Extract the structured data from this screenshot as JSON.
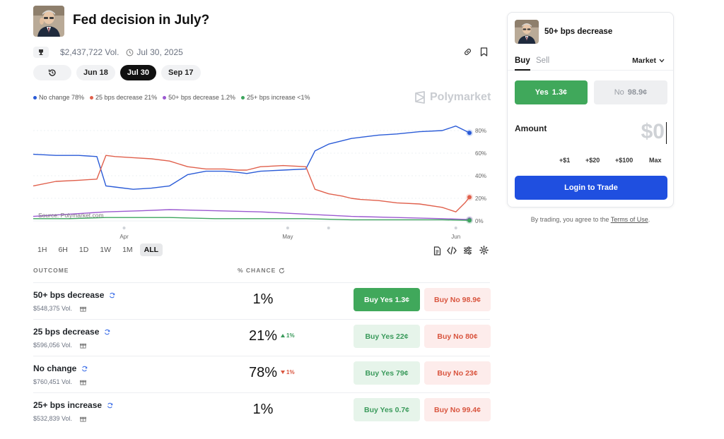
{
  "market": {
    "title": "Fed decision in July?",
    "volume": "$2,437,722 Vol.",
    "end_date": "Jul 30, 2025"
  },
  "date_tabs": [
    {
      "label": "Jun 18",
      "active": false
    },
    {
      "label": "Jul 30",
      "active": true
    },
    {
      "label": "Sep 17",
      "active": false
    }
  ],
  "legend": [
    {
      "label": "No change 78%",
      "color": "#2a5bd7"
    },
    {
      "label": "25 bps decrease 21%",
      "color": "#e0604c"
    },
    {
      "label": "50+ bps decrease 1.2%",
      "color": "#9b59d0"
    },
    {
      "label": "25+ bps increase <1%",
      "color": "#3da55d"
    }
  ],
  "brand": "Polymarket",
  "chart_data": {
    "type": "line",
    "x_ticks": [
      "Apr",
      "May",
      "Jun"
    ],
    "y_ticks": [
      "0%",
      "20%",
      "40%",
      "60%",
      "80%"
    ],
    "ylim": [
      0,
      100
    ],
    "watermark": "Source: Polymarket.com",
    "series": [
      {
        "name": "No change",
        "color": "#2a5bd7",
        "x": [
          0,
          5,
          10,
          14,
          16,
          18,
          22,
          26,
          30,
          34,
          38,
          42,
          45,
          47,
          50,
          55,
          60,
          62,
          65,
          68,
          70,
          72,
          76,
          80,
          85,
          90,
          93,
          95,
          96
        ],
        "y": [
          59,
          58,
          58,
          57,
          31,
          30,
          28,
          29,
          31,
          41,
          44,
          44,
          43,
          42,
          44,
          45,
          46,
          62,
          68,
          71,
          73,
          74,
          76,
          77,
          79,
          80,
          84,
          80,
          78
        ]
      },
      {
        "name": "25 bps decrease",
        "color": "#e0604c",
        "x": [
          0,
          5,
          10,
          14,
          16,
          18,
          22,
          26,
          30,
          34,
          38,
          42,
          45,
          47,
          50,
          55,
          60,
          62,
          65,
          68,
          70,
          72,
          76,
          80,
          85,
          90,
          93,
          95,
          96
        ],
        "y": [
          31,
          35,
          36,
          37,
          58,
          57,
          56,
          55,
          53,
          48,
          46,
          46,
          45,
          45,
          48,
          49,
          48,
          28,
          24,
          22,
          20,
          19,
          18,
          16,
          15,
          12,
          8,
          16,
          21
        ]
      },
      {
        "name": "50+ bps decrease",
        "color": "#9b59d0",
        "x": [
          0,
          8,
          16,
          24,
          30,
          40,
          50,
          60,
          70,
          80,
          90,
          96
        ],
        "y": [
          4,
          6,
          8,
          9,
          10,
          9,
          8,
          6,
          4,
          3,
          2,
          1.2
        ]
      },
      {
        "name": "25+ bps increase",
        "color": "#3da55d",
        "x": [
          0,
          8,
          16,
          24,
          30,
          40,
          50,
          60,
          70,
          80,
          90,
          96
        ],
        "y": [
          2,
          2,
          3,
          3,
          3,
          2,
          2,
          2,
          1,
          1,
          1,
          0.5
        ]
      }
    ]
  },
  "range_tabs": [
    {
      "label": "1H",
      "active": false
    },
    {
      "label": "6H",
      "active": false
    },
    {
      "label": "1D",
      "active": false
    },
    {
      "label": "1W",
      "active": false
    },
    {
      "label": "1M",
      "active": false
    },
    {
      "label": "ALL",
      "active": true
    }
  ],
  "table": {
    "outcome_header": "OUTCOME",
    "chance_header": "% CHANCE",
    "rows": [
      {
        "name": "50+ bps decrease",
        "volume": "$548,375 Vol.",
        "chance": "1%",
        "change": "",
        "change_dir": "",
        "yes": "Buy Yes 1.3¢",
        "no": "Buy No 98.9¢",
        "selected": true
      },
      {
        "name": "25 bps decrease",
        "volume": "$596,056 Vol.",
        "chance": "21%",
        "change": "1%",
        "change_dir": "up",
        "yes": "Buy Yes 22¢",
        "no": "Buy No 80¢",
        "selected": false
      },
      {
        "name": "No change",
        "volume": "$760,451 Vol.",
        "chance": "78%",
        "change": "1%",
        "change_dir": "down",
        "yes": "Buy Yes 79¢",
        "no": "Buy No 23¢",
        "selected": false
      },
      {
        "name": "25+ bps increase",
        "volume": "$532,839 Vol.",
        "chance": "1%",
        "change": "",
        "change_dir": "",
        "yes": "Buy Yes 0.7¢",
        "no": "Buy No 99.4¢",
        "selected": false
      }
    ]
  },
  "panel": {
    "title": "50+ bps decrease",
    "buy_label": "Buy",
    "sell_label": "Sell",
    "order_type": "Market",
    "yes_label": "Yes",
    "yes_price": "1.3¢",
    "no_label": "No",
    "no_price": "98.9¢",
    "amount_label": "Amount",
    "amount_value": "$0",
    "quick_amounts": [
      "+$1",
      "+$20",
      "+$100",
      "Max"
    ],
    "login_label": "Login to Trade",
    "terms_prefix": "By trading, you agree to the ",
    "terms_link": "Terms of Use",
    "terms_suffix": "."
  }
}
